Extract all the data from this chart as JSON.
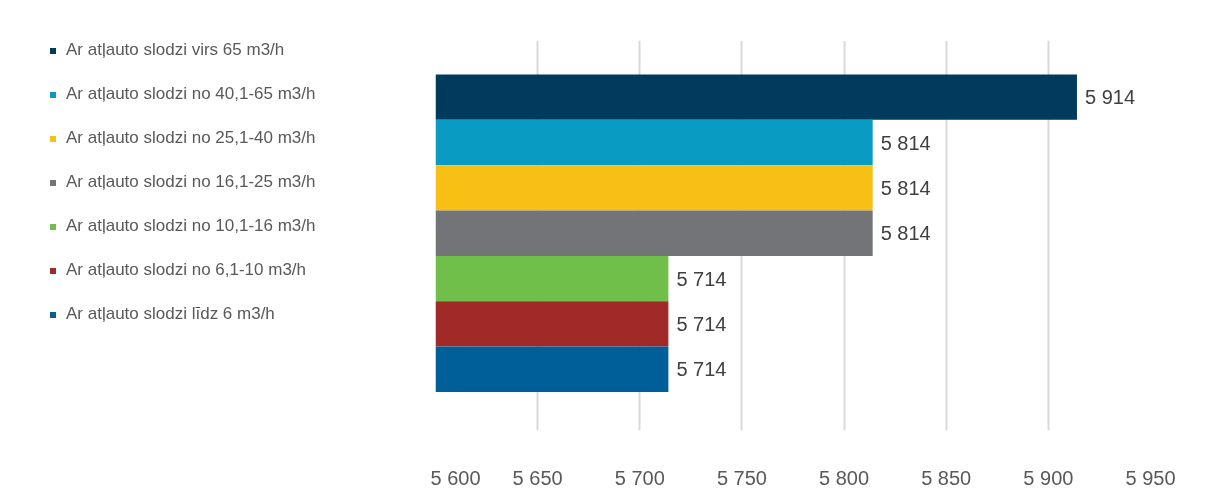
{
  "chart_data": {
    "type": "bar",
    "orientation": "horizontal",
    "categories": [
      null
    ],
    "series": [
      {
        "name": "Ar atļauto slodzi virs 65 m3/h",
        "color": "#003a5c",
        "values": [
          5914
        ],
        "value_labels": [
          "5 914"
        ]
      },
      {
        "name": "Ar atļauto slodzi no 40,1-65 m3/h",
        "color": "#0a9bc3",
        "values": [
          5814
        ],
        "value_labels": [
          "5 814"
        ]
      },
      {
        "name": "Ar atļauto slodzi no 25,1-40 m3/h",
        "color": "#f8bf14",
        "values": [
          5814
        ],
        "value_labels": [
          "5 814"
        ]
      },
      {
        "name": "Ar atļauto slodzi no 16,1-25 m3/h",
        "color": "#737478",
        "values": [
          5814
        ],
        "value_labels": [
          "5 814"
        ]
      },
      {
        "name": "Ar atļauto slodzi no 10,1-16 m3/h",
        "color": "#70bf4a",
        "values": [
          5714
        ],
        "value_labels": [
          "5 714"
        ]
      },
      {
        "name": "Ar atļauto slodzi no 6,1-10 m3/h",
        "color": "#a12a29",
        "values": [
          5714
        ],
        "value_labels": [
          "5 714"
        ]
      },
      {
        "name": "Ar atļauto slodzi līdz 6 m3/h",
        "color": "#005f98",
        "values": [
          5714
        ],
        "value_labels": [
          "5 714"
        ]
      }
    ],
    "xlim": [
      5600,
      5950
    ],
    "xticks": [
      {
        "value": 5600,
        "label": "5 600"
      },
      {
        "value": 5650,
        "label": "5 650"
      },
      {
        "value": 5700,
        "label": "5 700"
      },
      {
        "value": 5750,
        "label": "5 750"
      },
      {
        "value": 5800,
        "label": "5 800"
      },
      {
        "value": 5850,
        "label": "5 850"
      },
      {
        "value": 5900,
        "label": "5 900"
      },
      {
        "value": 5950,
        "label": "5 950"
      }
    ],
    "grid": "x",
    "legend": "left"
  }
}
